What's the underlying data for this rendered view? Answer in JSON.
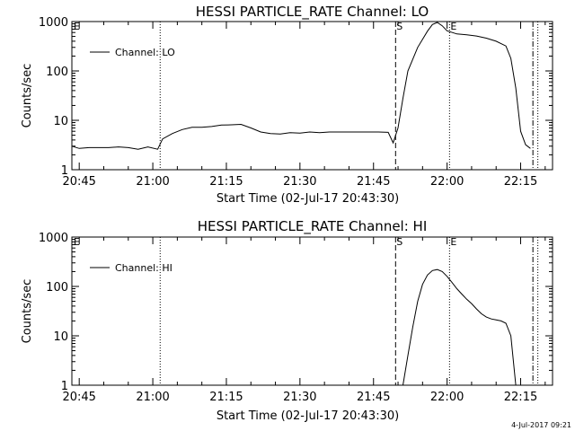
{
  "footer": {
    "timestamp": "4-Jul-2017 09:21"
  },
  "chart_data": [
    {
      "type": "line",
      "title": "HESSI PARTICLE_RATE Channel: LO",
      "xlabel": "Start Time (02-Jul-17 20:43:30)",
      "ylabel": "Counts/sec",
      "yscale": "log",
      "xlim": [
        "20:43:30",
        "22:21:30"
      ],
      "ylim": [
        1,
        1000
      ],
      "xticks": [
        "20:45",
        "21:00",
        "21:15",
        "21:30",
        "21:45",
        "22:00",
        "22:15"
      ],
      "yticks": [
        "1",
        "10",
        "100",
        "1000"
      ],
      "legend": {
        "position": "top-left",
        "label": "Channel: LO"
      },
      "markers": [
        {
          "time": "21:01:30",
          "style": "dotted",
          "label": ""
        },
        {
          "time": "21:49:30",
          "style": "dashed",
          "label": "S"
        },
        {
          "time": "22:00:30",
          "style": "dotted",
          "label": "E"
        },
        {
          "time": "22:17:30",
          "style": "dash-dot",
          "label": ""
        },
        {
          "time": "22:18:30",
          "style": "dotted",
          "label": ""
        }
      ],
      "series": [
        {
          "name": "Channel: LO",
          "x": [
            "20:43:30",
            "20:45",
            "20:47",
            "20:49",
            "20:51",
            "20:53",
            "20:55",
            "20:57",
            "20:59",
            "21:01",
            "21:02",
            "21:04",
            "21:06",
            "21:08",
            "21:10",
            "21:12",
            "21:14",
            "21:16",
            "21:18",
            "21:20",
            "21:22",
            "21:24",
            "21:26",
            "21:28",
            "21:30",
            "21:32",
            "21:34",
            "21:36",
            "21:38",
            "21:40",
            "21:42",
            "21:44",
            "21:46",
            "21:48",
            "21:49",
            "21:50",
            "21:51",
            "21:52",
            "21:54",
            "21:56",
            "21:57",
            "21:58",
            "21:59",
            "22:00",
            "22:02",
            "22:04",
            "22:06",
            "22:08",
            "22:10",
            "22:12",
            "22:13",
            "22:14",
            "22:15",
            "22:16",
            "22:17"
          ],
          "y": [
            3,
            2.7,
            2.8,
            2.8,
            2.8,
            2.9,
            2.8,
            2.6,
            2.9,
            2.6,
            4.2,
            5.4,
            6.5,
            7.2,
            7.2,
            7.5,
            8,
            8.1,
            8.3,
            7,
            5.8,
            5.4,
            5.3,
            5.6,
            5.5,
            5.8,
            5.6,
            5.8,
            5.8,
            5.8,
            5.8,
            5.8,
            5.8,
            5.7,
            3.5,
            7,
            28,
            100,
            300,
            640,
            870,
            960,
            820,
            650,
            560,
            540,
            510,
            460,
            400,
            320,
            180,
            45,
            6,
            3.2,
            2.7
          ]
        }
      ]
    },
    {
      "type": "line",
      "title": "HESSI PARTICLE_RATE Channel: HI",
      "xlabel": "Start Time (02-Jul-17 20:43:30)",
      "ylabel": "Counts/sec",
      "yscale": "log",
      "xlim": [
        "20:43:30",
        "22:21:30"
      ],
      "ylim": [
        1,
        1000
      ],
      "xticks": [
        "20:45",
        "21:00",
        "21:15",
        "21:30",
        "21:45",
        "22:00",
        "22:15"
      ],
      "yticks": [
        "1",
        "10",
        "100",
        "1000"
      ],
      "legend": {
        "position": "top-left",
        "label": "Channel: HI"
      },
      "markers": [
        {
          "time": "21:01:30",
          "style": "dotted",
          "label": ""
        },
        {
          "time": "21:49:30",
          "style": "dashed",
          "label": "S"
        },
        {
          "time": "22:00:30",
          "style": "dotted",
          "label": "E"
        },
        {
          "time": "22:17:30",
          "style": "dash-dot",
          "label": ""
        },
        {
          "time": "22:18:30",
          "style": "dotted",
          "label": ""
        }
      ],
      "series": [
        {
          "name": "Channel: HI",
          "x": [
            "21:51",
            "21:52",
            "21:53",
            "21:54",
            "21:55",
            "21:56",
            "21:57",
            "21:58",
            "21:59",
            "22:00",
            "22:01",
            "22:02",
            "22:03",
            "22:04",
            "22:05",
            "22:06",
            "22:07",
            "22:08",
            "22:09",
            "22:10",
            "22:11",
            "22:12",
            "22:13",
            "22:14"
          ],
          "y": [
            1,
            4,
            15,
            50,
            110,
            170,
            210,
            220,
            200,
            160,
            120,
            90,
            70,
            55,
            45,
            35,
            28,
            24,
            22,
            21,
            20,
            18,
            10,
            1
          ]
        }
      ]
    }
  ]
}
